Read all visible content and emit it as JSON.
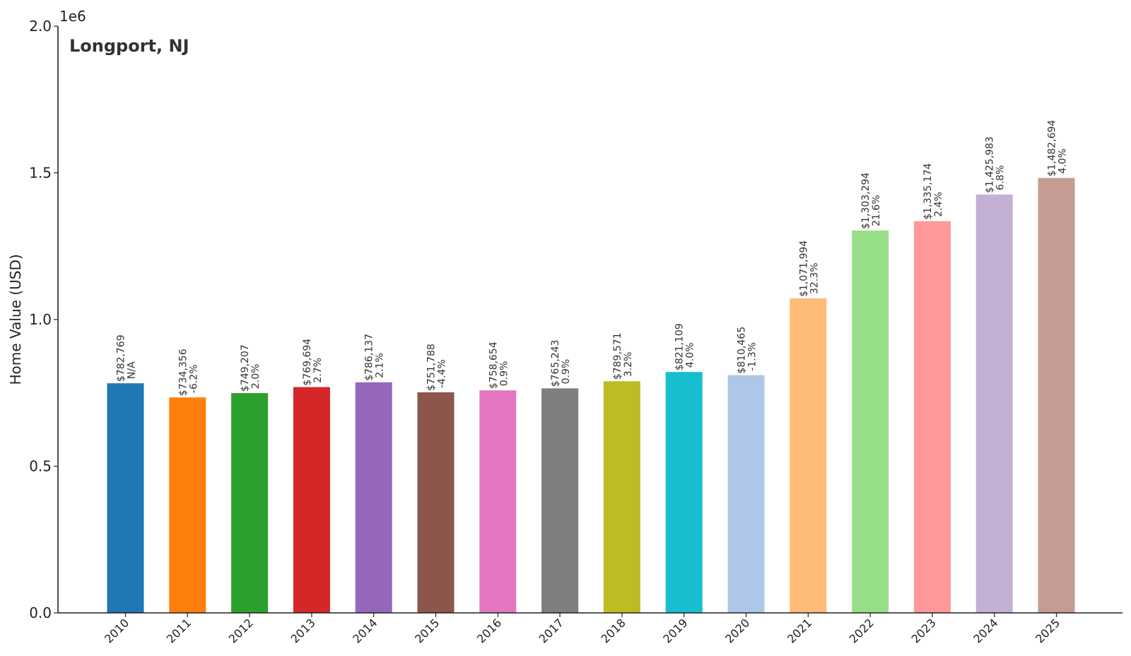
{
  "chart_data": {
    "type": "bar",
    "title": "Longport, NJ",
    "ylabel": "Home Value (USD)",
    "xlabel": "",
    "offset_label": "1e6",
    "ylim": [
      0,
      2000000
    ],
    "yticks": [
      0,
      500000,
      1000000,
      1500000,
      2000000
    ],
    "ytick_labels": [
      "0.0",
      "0.5",
      "1.0",
      "1.5",
      "2.0"
    ],
    "grid": false,
    "categories": [
      "2010",
      "2011",
      "2012",
      "2013",
      "2014",
      "2015",
      "2016",
      "2017",
      "2018",
      "2019",
      "2020",
      "2021",
      "2022",
      "2023",
      "2024",
      "2025"
    ],
    "values": [
      782769,
      734356,
      749207,
      769694,
      786137,
      751788,
      758654,
      765243,
      789571,
      821109,
      810465,
      1071994,
      1303294,
      1335174,
      1425983,
      1482694
    ],
    "value_labels": [
      "$782,769",
      "$734,356",
      "$749,207",
      "$769,694",
      "$786,137",
      "$751,788",
      "$758,654",
      "$765,243",
      "$789,571",
      "$821,109",
      "$810,465",
      "$1,071,994",
      "$1,303,294",
      "$1,335,174",
      "$1,425,983",
      "$1,482,694"
    ],
    "change_labels": [
      "N/A",
      "-6.2%",
      "2.0%",
      "2.7%",
      "2.1%",
      "-4.4%",
      "0.9%",
      "0.9%",
      "3.2%",
      "4.0%",
      "-1.3%",
      "32.3%",
      "21.6%",
      "2.4%",
      "6.8%",
      "4.0%"
    ],
    "colors": [
      "#1f77b4",
      "#ff7f0e",
      "#2ca02c",
      "#d62728",
      "#9467bd",
      "#8c564b",
      "#e377c2",
      "#7f7f7f",
      "#bcbd22",
      "#17becf",
      "#aec7e8",
      "#ffbb78",
      "#98df8a",
      "#ff9896",
      "#c5b0d5",
      "#c49c94"
    ]
  }
}
